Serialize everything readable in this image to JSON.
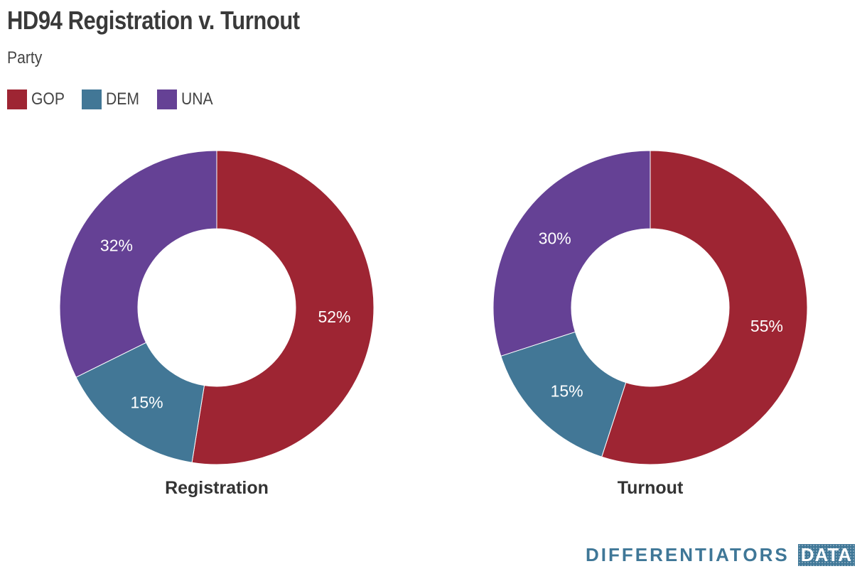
{
  "title": "HD94 Registration v. Turnout",
  "subtitle": "Party",
  "legend": [
    {
      "label": "GOP",
      "color": "#9e2533"
    },
    {
      "label": "DEM",
      "color": "#427796"
    },
    {
      "label": "UNA",
      "color": "#654195"
    }
  ],
  "chart_data": [
    {
      "type": "pie",
      "title": "Registration",
      "slices": [
        {
          "label": "GOP",
          "value": 52,
          "display": "52%",
          "color": "#9e2533"
        },
        {
          "label": "DEM",
          "value": 15,
          "display": "15%",
          "color": "#427796"
        },
        {
          "label": "UNA",
          "value": 32,
          "display": "32%",
          "color": "#654195"
        }
      ]
    },
    {
      "type": "pie",
      "title": "Turnout",
      "slices": [
        {
          "label": "GOP",
          "value": 55,
          "display": "55%",
          "color": "#9e2533"
        },
        {
          "label": "DEM",
          "value": 15,
          "display": "15%",
          "color": "#427796"
        },
        {
          "label": "UNA",
          "value": 30,
          "display": "30%",
          "color": "#654195"
        }
      ]
    }
  ],
  "branding": {
    "text": "DIFFERENTIATORS",
    "box": "DATA"
  }
}
